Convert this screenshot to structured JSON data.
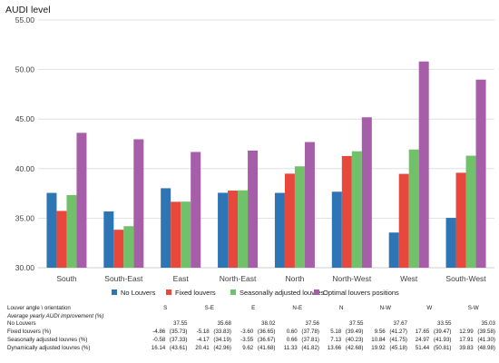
{
  "chart_data": {
    "type": "bar",
    "ylabel": "AUDI level",
    "ylim": [
      30,
      55
    ],
    "yticks": [
      "30.00",
      "35.00",
      "40.00",
      "45.00",
      "50.00",
      "55.00"
    ],
    "grid": true,
    "legend_position": "bottom",
    "categories": [
      "South",
      "South-East",
      "East",
      "North-East",
      "North",
      "North-West",
      "West",
      "South-West"
    ],
    "series": [
      {
        "name": "No Louvers",
        "color": "#2e75b6",
        "values": [
          37.55,
          35.68,
          38.02,
          37.56,
          37.55,
          37.67,
          33.55,
          35.03
        ]
      },
      {
        "name": "Fixed louvers",
        "color": "#e8483b",
        "values": [
          35.73,
          33.83,
          36.65,
          37.78,
          39.49,
          41.27,
          39.47,
          39.58
        ]
      },
      {
        "name": "Seasonally adjusted louvres",
        "color": "#70c16a",
        "values": [
          37.33,
          34.19,
          36.67,
          37.81,
          40.23,
          41.75,
          41.93,
          41.3
        ]
      },
      {
        "name": "Optimal louvers positions",
        "color": "#a55ea7",
        "values": [
          43.61,
          42.96,
          41.68,
          41.82,
          42.68,
          45.18,
          50.81,
          48.98
        ]
      }
    ]
  },
  "table": {
    "header_label": "Louver angle \\ orientation",
    "orientations": [
      "S",
      "S-E",
      "E",
      "N-E",
      "N",
      "N-W",
      "W",
      "S-W"
    ],
    "subheader": "Average yearly AUDI improvement (%)",
    "rows": [
      {
        "label": "No Louvers",
        "cells": [
          [
            "",
            "37.55"
          ],
          [
            "",
            "35.68"
          ],
          [
            "",
            "38.02"
          ],
          [
            "",
            "37.56"
          ],
          [
            "",
            "37.55"
          ],
          [
            "",
            "37.67"
          ],
          [
            "",
            "33.55"
          ],
          [
            "",
            "35.03"
          ]
        ]
      },
      {
        "label": "Fixed louvers (%)",
        "cells": [
          [
            "-4.86",
            "(35.73)"
          ],
          [
            "-5.18",
            "(33.83)"
          ],
          [
            "-3.60",
            "(36.65)"
          ],
          [
            "0.60",
            "(37.78)"
          ],
          [
            "5.18",
            "(39.49)"
          ],
          [
            "9.56",
            "(41.27)"
          ],
          [
            "17.65",
            "(39.47)"
          ],
          [
            "12.99",
            "(39.58)"
          ]
        ]
      },
      {
        "label": "Seasonally adjusted louvres (%)",
        "cells": [
          [
            "-0.58",
            "(37.33)"
          ],
          [
            "-4.17",
            "(34.19)"
          ],
          [
            "-3.55",
            "(36.67)"
          ],
          [
            "0.66",
            "(37.81)"
          ],
          [
            "7.13",
            "(40.23)"
          ],
          [
            "10.84",
            "(41.75)"
          ],
          [
            "24.97",
            "(41.93)"
          ],
          [
            "17.91",
            "(41.30)"
          ]
        ]
      },
      {
        "label": "Dynamically adjusted louvres (%)",
        "cells": [
          [
            "16.14",
            "(43.61)"
          ],
          [
            "20.41",
            "(42.96)"
          ],
          [
            "9.62",
            "(41.68)"
          ],
          [
            "11.33",
            "(41.82)"
          ],
          [
            "13.66",
            "(42.68)"
          ],
          [
            "19.92",
            "(45.18)"
          ],
          [
            "51.44",
            "(50.81)"
          ],
          [
            "39.83",
            "(48.98)"
          ]
        ]
      }
    ]
  }
}
